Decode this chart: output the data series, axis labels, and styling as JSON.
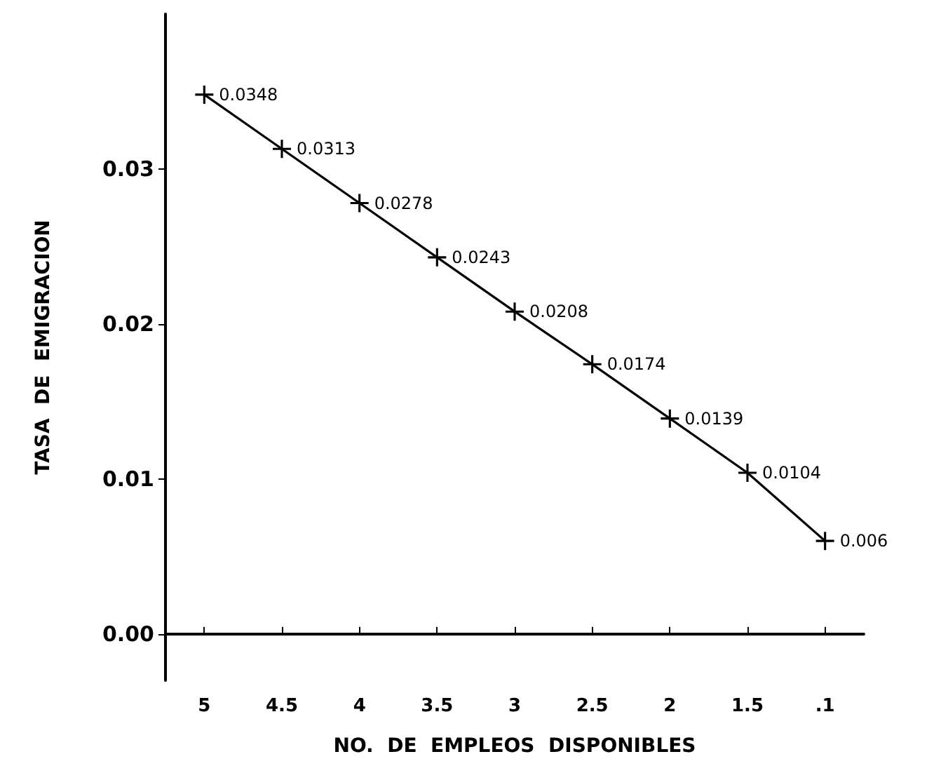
{
  "chart_data": {
    "type": "line",
    "xlabel": "NO.  DE  EMPLEOS  DISPONIBLES",
    "ylabel": "TASA  DE  EMIGRACION",
    "categories": [
      "5",
      "4.5",
      "4",
      "3.5",
      "3",
      "2.5",
      "2",
      "1.5",
      ".1"
    ],
    "series": [
      {
        "color": "#000000",
        "values": [
          0.0348,
          0.0313,
          0.0278,
          0.0243,
          0.0208,
          0.0174,
          0.0139,
          0.0104,
          0.006
        ],
        "value_labels": [
          "0.0348",
          "0.0313",
          "0.0278",
          "0.0243",
          "0.0208",
          "0.0174",
          "0.0139",
          "0.0104",
          "0.006"
        ]
      }
    ],
    "ylim": [
      -0.003,
      0.04
    ],
    "yticks": [
      {
        "value": 0,
        "label": "0.00"
      },
      {
        "value": 0.01,
        "label": "0.01"
      },
      {
        "value": 0.02,
        "label": "0.02"
      },
      {
        "value": 0.03,
        "label": "0.03"
      }
    ],
    "marker": "cross",
    "line_style": "solid"
  }
}
